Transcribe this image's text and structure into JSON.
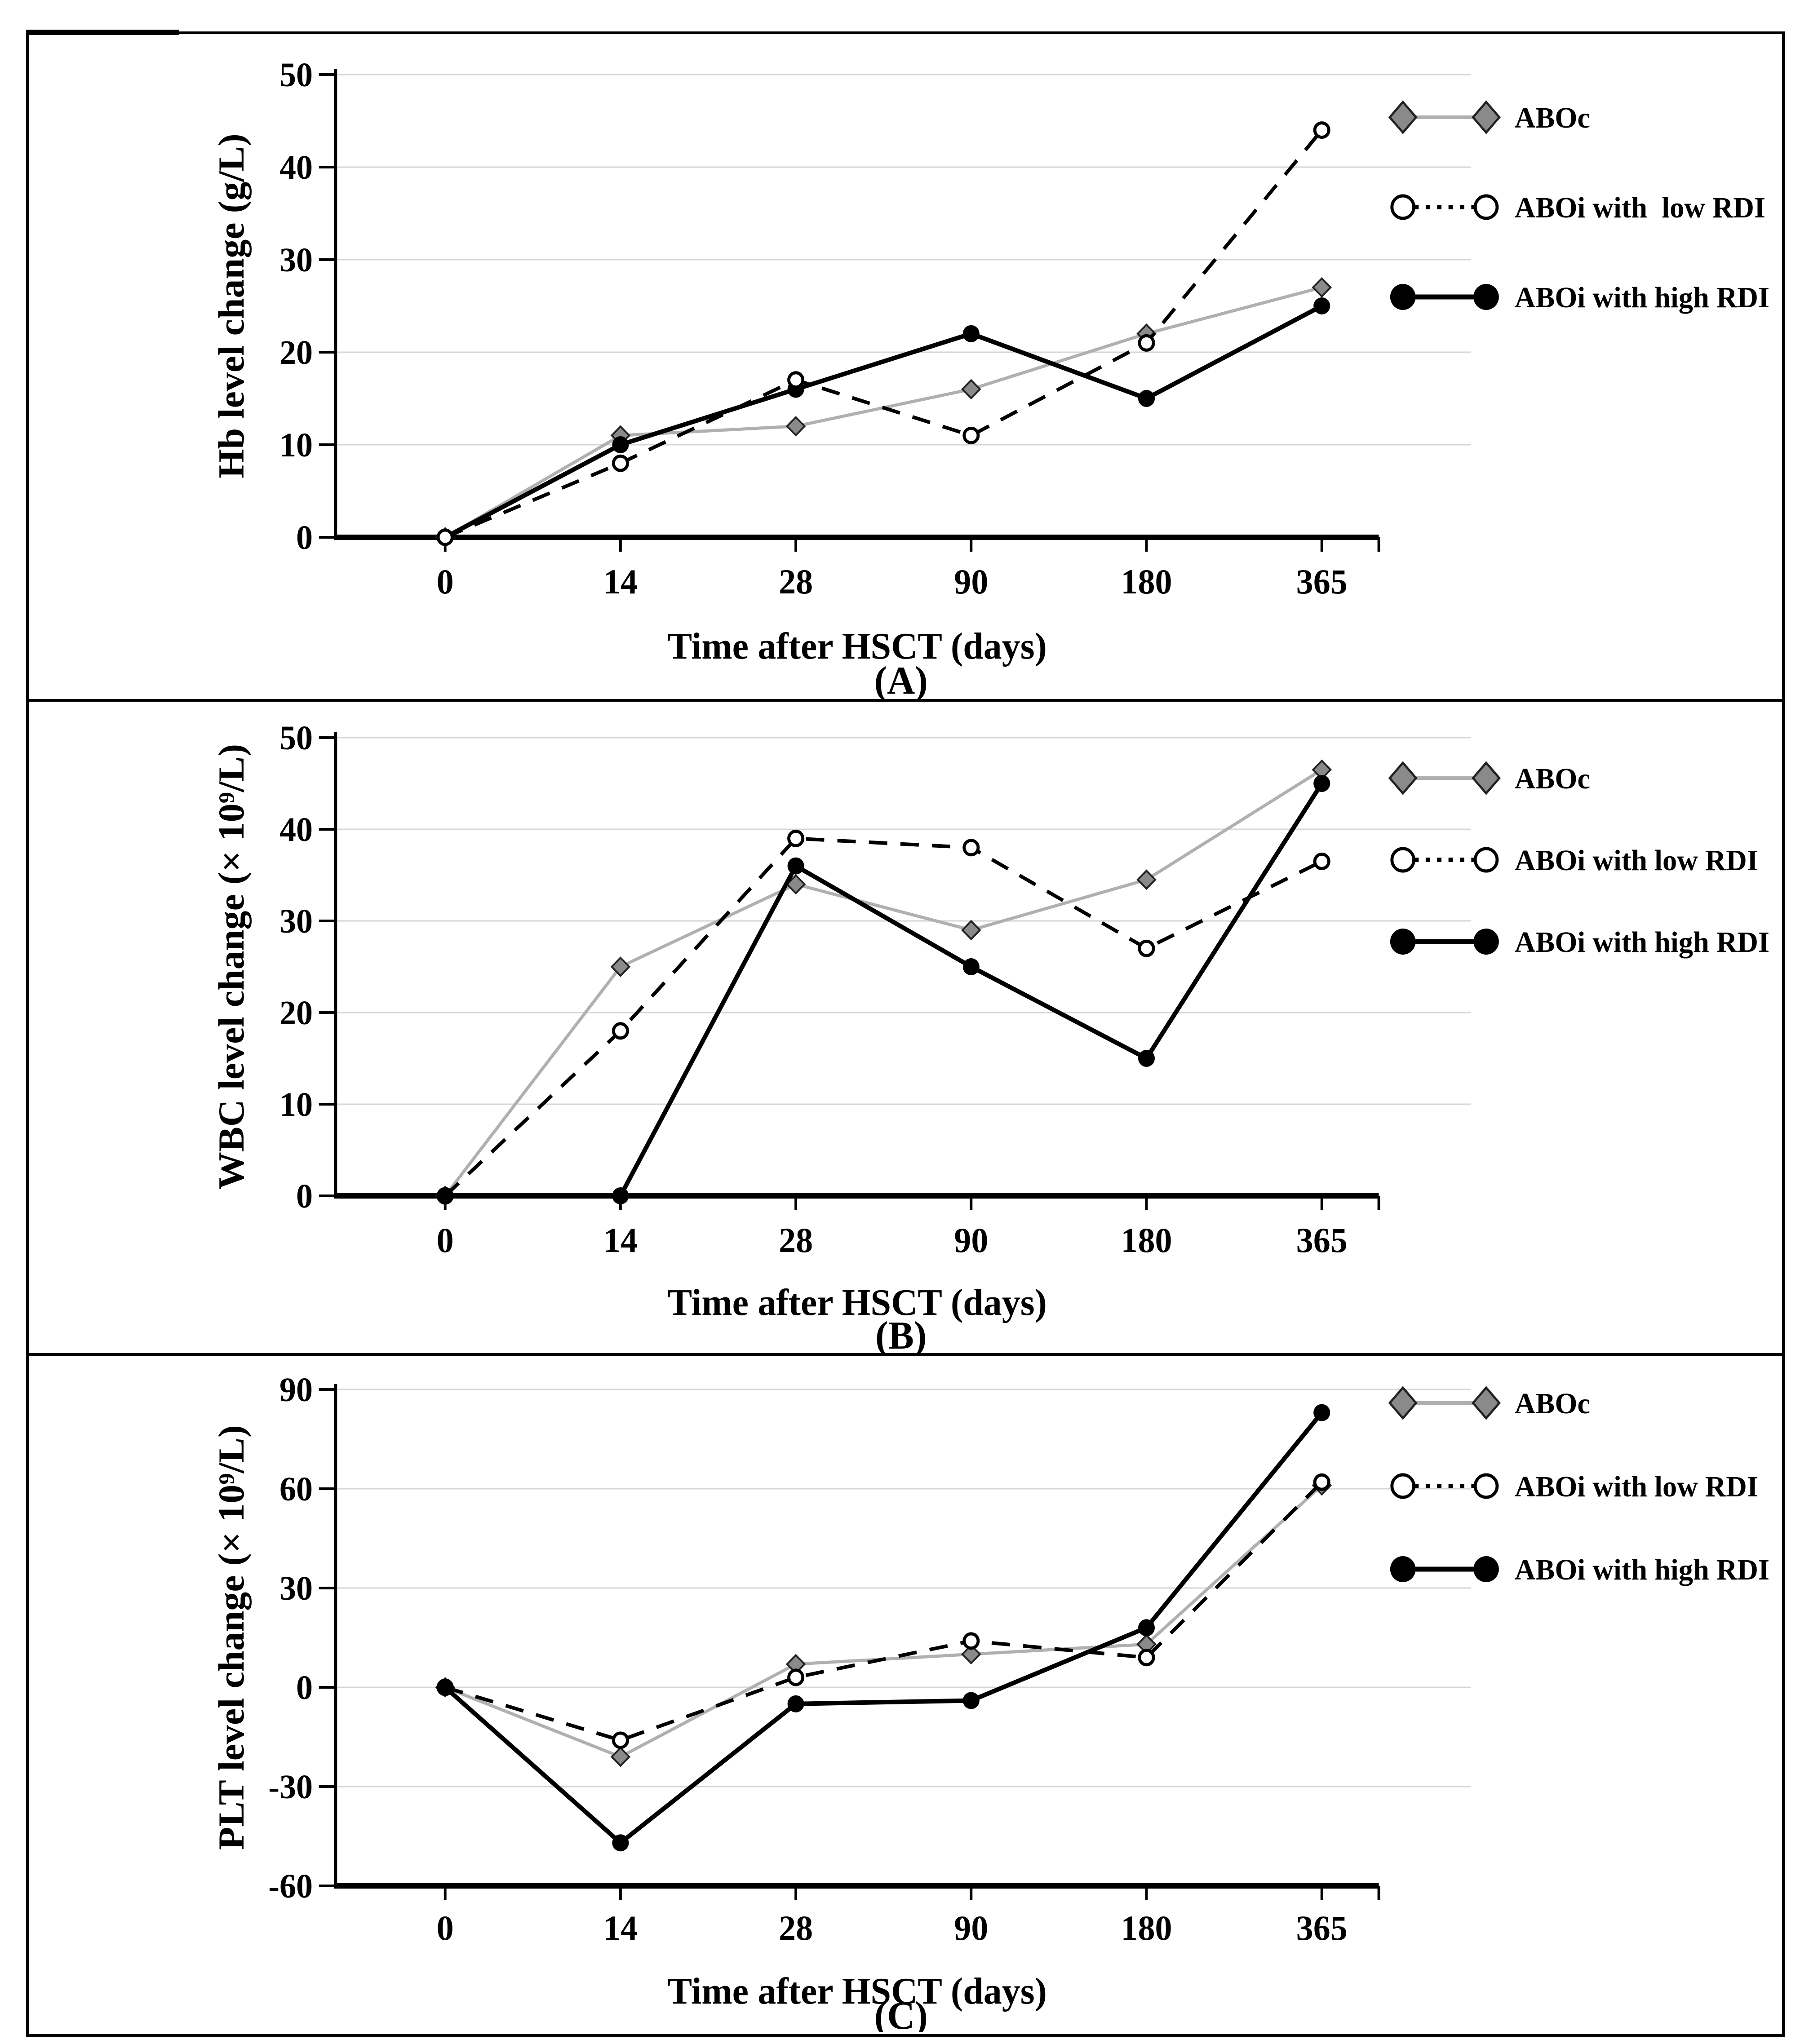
{
  "figure": {
    "background": "#ffffff",
    "border_color": "#000000",
    "grid_color": "#d6d6d6",
    "panels": [
      {
        "id": "A",
        "caption": "(A)"
      },
      {
        "id": "B",
        "caption": "(B)"
      },
      {
        "id": "C",
        "caption": "(C)"
      }
    ]
  },
  "chart_data": [
    {
      "type": "line",
      "title": "",
      "ylabel": "Hb level change (g/L)",
      "xlabel": "Time after HSCT (days)",
      "caption": "(A)",
      "categories": [
        "0",
        "14",
        "28",
        "90",
        "180",
        "365"
      ],
      "ylim": [
        0,
        50
      ],
      "yticks": [
        0,
        10,
        20,
        30,
        40,
        50
      ],
      "grid": true,
      "legend_position": "top-right",
      "z_order": [
        0,
        2,
        1
      ],
      "series": [
        {
          "name": "ABOc",
          "values": [
            0,
            11,
            12,
            16,
            22,
            27
          ],
          "marker": "diamond",
          "line_style": "solid",
          "legend_line": "solid",
          "line_color": "#b0b0b0",
          "marker_fill": "#8a8a8a",
          "marker_stroke": "#222222"
        },
        {
          "name": "ABOi with  low RDI",
          "values": [
            0,
            8,
            17,
            11,
            21,
            44
          ],
          "marker": "open-circle",
          "line_style": "dashed",
          "legend_line": "dotted",
          "line_color": "#000000",
          "marker_fill": "#ffffff",
          "marker_stroke": "#000000"
        },
        {
          "name": "ABOi with high RDI",
          "values": [
            0,
            10,
            16,
            22,
            15,
            25
          ],
          "marker": "filled-circle",
          "line_style": "solid",
          "legend_line": "solid",
          "line_color": "#000000",
          "marker_fill": "#000000",
          "marker_stroke": "#000000"
        }
      ]
    },
    {
      "type": "line",
      "title": "",
      "ylabel": "WBC level change (× 10⁹/L)",
      "xlabel": "Time after HSCT (days)",
      "caption": "(B)",
      "categories": [
        "0",
        "14",
        "28",
        "90",
        "180",
        "365"
      ],
      "ylim": [
        0,
        50
      ],
      "yticks": [
        0,
        10,
        20,
        30,
        40,
        50
      ],
      "grid": true,
      "legend_position": "top-right",
      "z_order": [
        0,
        1,
        2
      ],
      "series": [
        {
          "name": "ABOc",
          "values": [
            0,
            25,
            34,
            29,
            34.5,
            46.5
          ],
          "marker": "diamond",
          "line_style": "solid",
          "legend_line": "solid",
          "line_color": "#b0b0b0",
          "marker_fill": "#8a8a8a",
          "marker_stroke": "#222222"
        },
        {
          "name": "ABOi with low RDI",
          "values": [
            0,
            18,
            39,
            38,
            27,
            36.5
          ],
          "marker": "open-circle",
          "line_style": "dashed",
          "legend_line": "dotted",
          "line_color": "#000000",
          "marker_fill": "#ffffff",
          "marker_stroke": "#000000"
        },
        {
          "name": "ABOi with high RDI",
          "values": [
            0,
            0,
            36,
            25,
            15,
            45
          ],
          "marker": "filled-circle",
          "line_style": "solid",
          "legend_line": "solid",
          "line_color": "#000000",
          "marker_fill": "#000000",
          "marker_stroke": "#000000"
        }
      ]
    },
    {
      "type": "line",
      "title": "",
      "ylabel": "PLT level change (× 10⁹/L)",
      "xlabel": "Time after HSCT (days)",
      "caption": "(C)",
      "categories": [
        "0",
        "14",
        "28",
        "90",
        "180",
        "365"
      ],
      "ylim": [
        -60,
        90
      ],
      "yticks": [
        -60,
        -30,
        0,
        30,
        60,
        90
      ],
      "grid": true,
      "legend_position": "top-right",
      "z_order": [
        0,
        1,
        2
      ],
      "series": [
        {
          "name": "ABOc",
          "values": [
            0,
            -21,
            7,
            10,
            13,
            61
          ],
          "marker": "diamond",
          "line_style": "solid",
          "legend_line": "solid",
          "line_color": "#b0b0b0",
          "marker_fill": "#8a8a8a",
          "marker_stroke": "#222222"
        },
        {
          "name": "ABOi with low RDI",
          "values": [
            0,
            -16,
            3,
            14,
            9,
            62
          ],
          "marker": "open-circle",
          "line_style": "dashed",
          "legend_line": "dotted",
          "line_color": "#000000",
          "marker_fill": "#ffffff",
          "marker_stroke": "#000000"
        },
        {
          "name": "ABOi with high RDI",
          "values": [
            0,
            -47,
            -5,
            -4,
            18,
            83
          ],
          "marker": "filled-circle",
          "line_style": "solid",
          "legend_line": "solid",
          "line_color": "#000000",
          "marker_fill": "#000000",
          "marker_stroke": "#000000"
        }
      ]
    }
  ]
}
